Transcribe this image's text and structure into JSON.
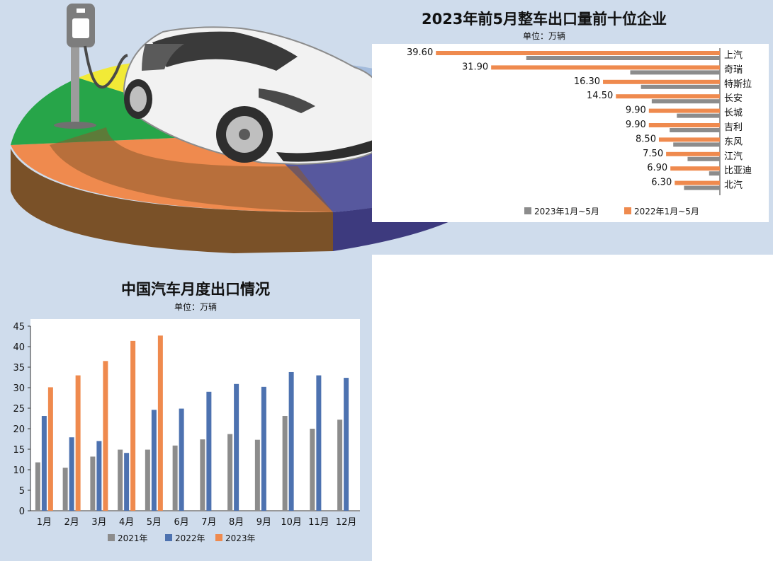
{
  "colors": {
    "background_panel": "#cfdcec",
    "orange": "#ef8a4e",
    "gray": "#8c8c8c",
    "blue": "#4d72b0"
  },
  "decoration": {
    "pie_colors": [
      "#ef8a4e",
      "#57589e",
      "#a3bbdc",
      "#f2ea36",
      "#27a549"
    ]
  },
  "chart_data": [
    {
      "type": "bar",
      "orientation": "horizontal",
      "title": "2023年前5月整车出口量前十位企业",
      "subtitle": "单位：万辆",
      "categories": [
        "上汽",
        "奇瑞",
        "特斯拉",
        "长安",
        "长城",
        "吉利",
        "东风",
        "江汽",
        "比亚迪",
        "北汽"
      ],
      "series": [
        {
          "name": "2023年1月~5月",
          "color": "#8c8c8c",
          "values": [
            39.6,
            31.9,
            16.3,
            14.5,
            9.9,
            9.9,
            8.5,
            7.5,
            6.9,
            6.3
          ]
        },
        {
          "name": "2022年1月~5月",
          "color": "#ef8a4e",
          "values": [
            27.0,
            12.5,
            11.0,
            9.5,
            6.0,
            7.0,
            6.5,
            4.5,
            1.5,
            5.0
          ]
        }
      ],
      "data_labels": [
        "39.60",
        "31.90",
        "16.30",
        "14.50",
        "9.90",
        "9.90",
        "8.50",
        "7.50",
        "6.90",
        "6.30"
      ],
      "legend": "bottom",
      "xlim": [
        0,
        41.5
      ]
    },
    {
      "type": "bar",
      "title": "中国汽车月度出口情况",
      "subtitle": "单位：万辆",
      "categories": [
        "1月",
        "2月",
        "3月",
        "4月",
        "5月",
        "6月",
        "7月",
        "8月",
        "9月",
        "10月",
        "11月",
        "12月"
      ],
      "series": [
        {
          "name": "2021年",
          "color": "#8c8c8c",
          "values": [
            11.8,
            10.5,
            13.2,
            14.9,
            14.9,
            15.9,
            17.4,
            18.7,
            17.3,
            23.1,
            20.0,
            22.2
          ]
        },
        {
          "name": "2022年",
          "color": "#4d72b0",
          "values": [
            23.1,
            17.9,
            17.0,
            14.1,
            24.6,
            24.9,
            29.0,
            30.9,
            30.2,
            33.8,
            33.0,
            32.4
          ]
        },
        {
          "name": "2023年",
          "color": "#ef8a4e",
          "values": [
            30.1,
            33.0,
            36.5,
            41.4,
            42.7,
            null,
            null,
            null,
            null,
            null,
            null,
            null
          ]
        }
      ],
      "ylim": [
        0,
        45
      ],
      "yticks": [
        0,
        5,
        10,
        15,
        20,
        25,
        30,
        35,
        40,
        45
      ],
      "grid": false,
      "legend": "bottom"
    }
  ]
}
